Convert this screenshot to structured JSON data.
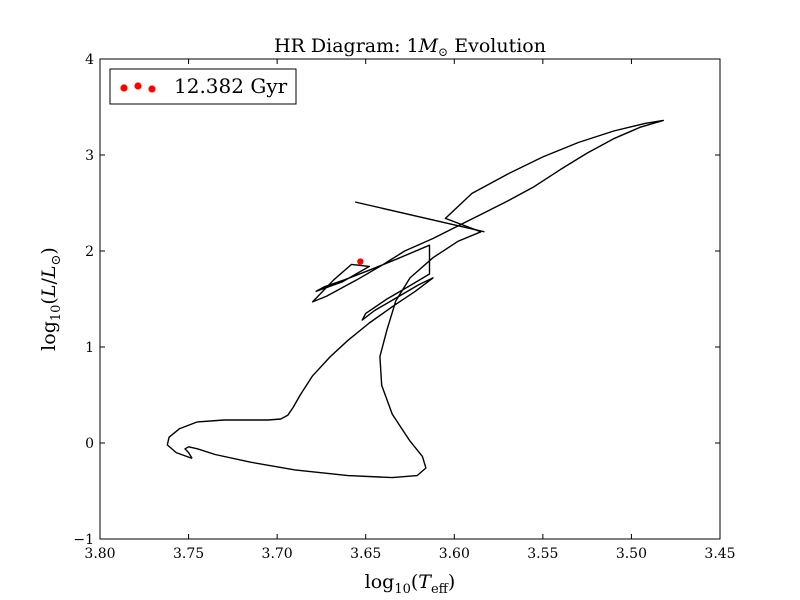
{
  "chart_data": {
    "type": "line",
    "title": "HR Diagram: 1M⊙ Evolution",
    "title_parts": {
      "prefix": "HR Diagram: 1",
      "symbol": "M",
      "subscript": "⊙",
      "suffix": " Evolution"
    },
    "xlabel": "log10(Teff)",
    "xlabel_parts": {
      "fn": "log",
      "fn_sub": "10",
      "open": "(",
      "var": "T",
      "var_sub": "eff",
      "close": ")"
    },
    "ylabel": "log10(L/L⊙)",
    "ylabel_parts": {
      "fn": "log",
      "fn_sub": "10",
      "open": "(",
      "var": "L",
      "mid": "/",
      "var2": "L",
      "var2_sub": "⊙",
      "close": ")"
    },
    "xlim": [
      3.8,
      3.45
    ],
    "ylim": [
      -1,
      4
    ],
    "x_inverted": true,
    "xticks": [
      3.8,
      3.75,
      3.7,
      3.65,
      3.6,
      3.55,
      3.5,
      3.45
    ],
    "xtick_labels": [
      "3.80",
      "3.75",
      "3.70",
      "3.65",
      "3.60",
      "3.55",
      "3.50",
      "3.45"
    ],
    "yticks": [
      -1,
      0,
      1,
      2,
      3,
      4
    ],
    "ytick_labels": [
      "−1",
      "0",
      "1",
      "2",
      "3",
      "4"
    ],
    "grid": false,
    "legend": {
      "placement": "top-left",
      "label": "12.382 Gyr",
      "color": "#ff0000"
    },
    "line_color": "#000000",
    "series": [
      {
        "name": "track",
        "color": "#000000",
        "points": [
          [
            3.748,
            -0.16
          ],
          [
            3.757,
            -0.1
          ],
          [
            3.762,
            -0.02
          ],
          [
            3.761,
            0.06
          ],
          [
            3.755,
            0.15
          ],
          [
            3.745,
            0.22
          ],
          [
            3.73,
            0.24
          ],
          [
            3.715,
            0.24
          ],
          [
            3.705,
            0.24
          ],
          [
            3.698,
            0.25
          ],
          [
            3.694,
            0.29
          ],
          [
            3.691,
            0.37
          ],
          [
            3.687,
            0.5
          ],
          [
            3.68,
            0.7
          ],
          [
            3.67,
            0.9
          ],
          [
            3.66,
            1.07
          ],
          [
            3.648,
            1.25
          ],
          [
            3.635,
            1.42
          ],
          [
            3.622,
            1.58
          ],
          [
            3.612,
            1.72
          ],
          [
            3.62,
            1.65
          ],
          [
            3.632,
            1.52
          ],
          [
            3.645,
            1.38
          ],
          [
            3.652,
            1.28
          ],
          [
            3.65,
            1.35
          ],
          [
            3.638,
            1.5
          ],
          [
            3.625,
            1.64
          ],
          [
            3.614,
            1.76
          ],
          [
            3.614,
            2.06
          ],
          [
            3.632,
            1.92
          ],
          [
            3.648,
            1.8
          ],
          [
            3.662,
            1.7
          ],
          [
            3.673,
            1.63
          ],
          [
            3.678,
            1.58
          ],
          [
            3.663,
            1.68
          ],
          [
            3.648,
            1.84
          ],
          [
            3.658,
            1.86
          ],
          [
            3.668,
            1.7
          ],
          [
            3.68,
            1.47
          ],
          [
            3.672,
            1.53
          ],
          [
            3.655,
            1.7
          ],
          [
            3.64,
            1.86
          ],
          [
            3.628,
            2.0
          ],
          [
            3.612,
            2.13
          ],
          [
            3.598,
            2.26
          ],
          [
            3.585,
            2.38
          ],
          [
            3.57,
            2.52
          ],
          [
            3.555,
            2.67
          ],
          [
            3.54,
            2.85
          ],
          [
            3.525,
            3.02
          ],
          [
            3.51,
            3.17
          ],
          [
            3.495,
            3.29
          ],
          [
            3.482,
            3.36
          ],
          [
            3.492,
            3.33
          ],
          [
            3.51,
            3.25
          ],
          [
            3.53,
            3.13
          ],
          [
            3.55,
            2.98
          ],
          [
            3.57,
            2.8
          ],
          [
            3.59,
            2.6
          ],
          [
            3.605,
            2.34
          ],
          [
            3.585,
            2.2
          ],
          [
            3.598,
            2.1
          ],
          [
            3.612,
            1.93
          ],
          [
            3.625,
            1.72
          ],
          [
            3.633,
            1.48
          ],
          [
            3.638,
            1.18
          ],
          [
            3.642,
            0.9
          ],
          [
            3.641,
            0.6
          ],
          [
            3.635,
            0.3
          ],
          [
            3.625,
            0.02
          ],
          [
            3.618,
            -0.14
          ],
          [
            3.616,
            -0.26
          ],
          [
            3.621,
            -0.34
          ],
          [
            3.635,
            -0.36
          ],
          [
            3.66,
            -0.34
          ],
          [
            3.69,
            -0.28
          ],
          [
            3.715,
            -0.2
          ],
          [
            3.735,
            -0.12
          ],
          [
            3.745,
            -0.06
          ],
          [
            3.75,
            -0.04
          ],
          [
            3.752,
            -0.06
          ],
          [
            3.75,
            -0.1
          ],
          [
            3.748,
            -0.16
          ]
        ]
      },
      {
        "name": "segment",
        "color": "#000000",
        "points": [
          [
            3.656,
            2.51
          ],
          [
            3.583,
            2.2
          ]
        ]
      }
    ],
    "marker": {
      "x": 3.653,
      "y": 1.89,
      "color": "#ff0000"
    }
  }
}
